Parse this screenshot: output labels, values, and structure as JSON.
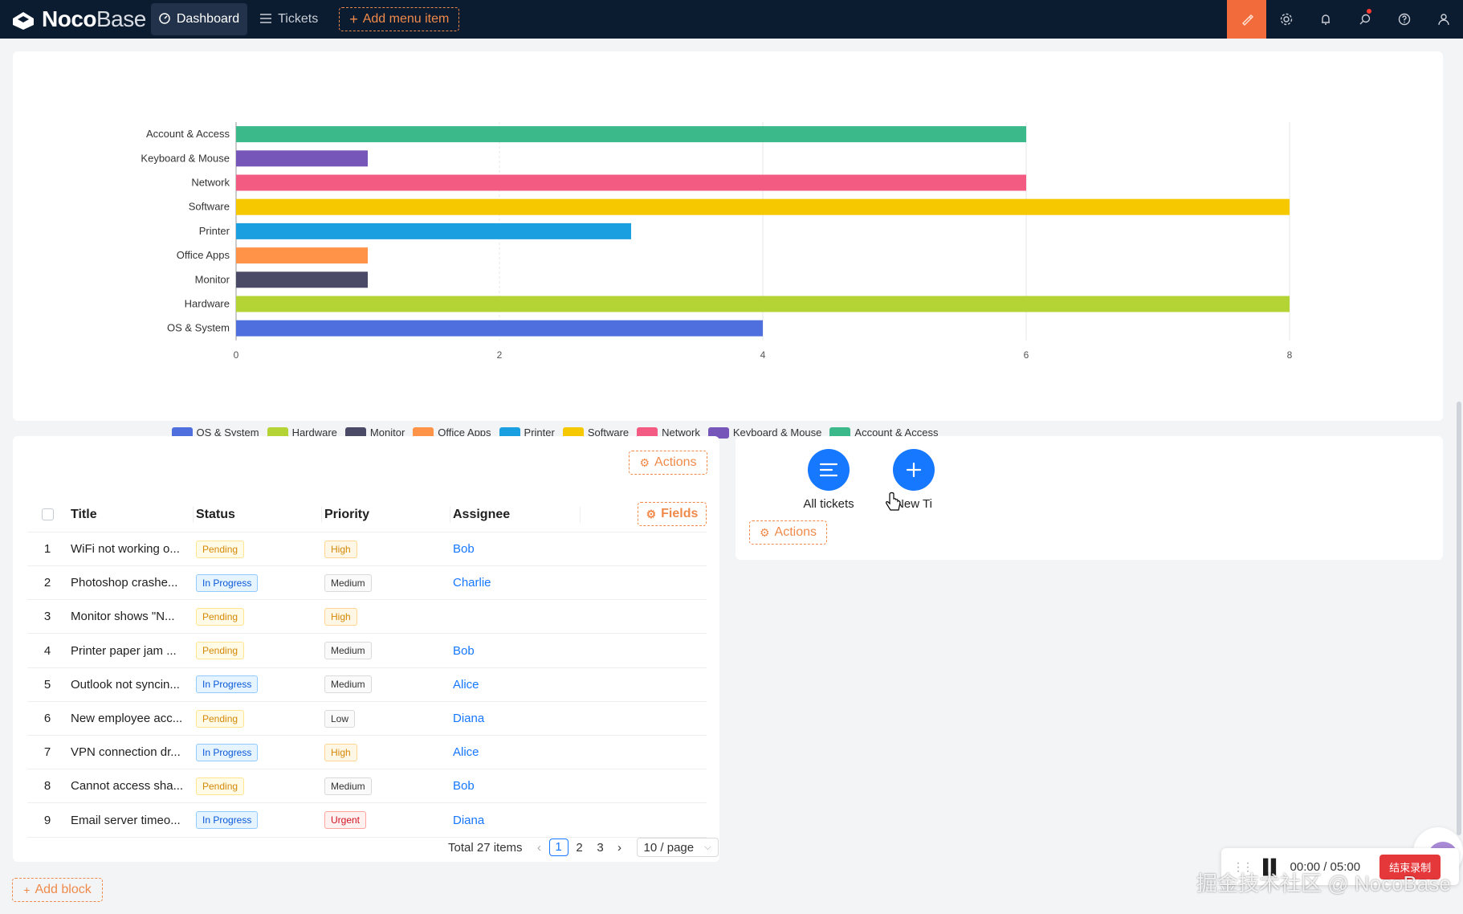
{
  "nav": {
    "logo_bold": "Noco",
    "logo_light": "Base",
    "items": [
      {
        "label": "Dashboard",
        "icon": "dashboard-icon",
        "active": true
      },
      {
        "label": "Tickets",
        "icon": "menu-icon",
        "active": false
      }
    ],
    "add_menu_label": "Add menu item",
    "right_icons": [
      "brush-icon",
      "gear-icon",
      "bell-icon",
      "search-icon",
      "help-icon",
      "user-icon"
    ]
  },
  "chart_data": {
    "type": "bar",
    "orientation": "horizontal",
    "categories": [
      "OS & System",
      "Hardware",
      "Monitor",
      "Office Apps",
      "Printer",
      "Software",
      "Network",
      "Keyboard & Mouse",
      "Account & Access"
    ],
    "values": [
      4,
      8,
      1,
      1,
      3,
      8,
      6,
      1,
      6
    ],
    "colors": [
      "#4f6fdf",
      "#b4d334",
      "#4a4a66",
      "#ff9448",
      "#1aa0e0",
      "#f5c800",
      "#f45b82",
      "#7656b8",
      "#3bb98a"
    ],
    "xlim": [
      0,
      8
    ],
    "xticks": [
      0,
      2,
      4,
      6,
      8
    ],
    "legend": [
      "OS & System",
      "Hardware",
      "Monitor",
      "Office Apps",
      "Printer",
      "Software",
      "Network",
      "Keyboard & Mouse",
      "Account & Access"
    ],
    "legend_position": "bottom",
    "grid": true
  },
  "table": {
    "actions_label": "Actions",
    "fields_label": "Fields",
    "columns": [
      "Title",
      "Status",
      "Priority",
      "Assignee"
    ],
    "rows": [
      {
        "num": "1",
        "title": "WiFi not working o...",
        "status": "Pending",
        "priority": "High",
        "assignee": "Bob"
      },
      {
        "num": "2",
        "title": "Photoshop crashe...",
        "status": "In Progress",
        "priority": "Medium",
        "assignee": "Charlie"
      },
      {
        "num": "3",
        "title": "Monitor shows \"N...",
        "status": "Pending",
        "priority": "High",
        "assignee": ""
      },
      {
        "num": "4",
        "title": "Printer paper jam ...",
        "status": "Pending",
        "priority": "Medium",
        "assignee": "Bob"
      },
      {
        "num": "5",
        "title": "Outlook not syncin...",
        "status": "In Progress",
        "priority": "Medium",
        "assignee": "Alice"
      },
      {
        "num": "6",
        "title": "New employee acc...",
        "status": "Pending",
        "priority": "Low",
        "assignee": "Diana"
      },
      {
        "num": "7",
        "title": "VPN connection dr...",
        "status": "In Progress",
        "priority": "High",
        "assignee": "Alice"
      },
      {
        "num": "8",
        "title": "Cannot access sha...",
        "status": "Pending",
        "priority": "Medium",
        "assignee": "Bob"
      },
      {
        "num": "9",
        "title": "Email server timeo...",
        "status": "In Progress",
        "priority": "Urgent",
        "assignee": "Diana"
      }
    ],
    "pagination": {
      "total": "Total 27 items",
      "pages": [
        "1",
        "2",
        "3"
      ],
      "current": "1",
      "page_size": "10 / page"
    }
  },
  "actions_panel": {
    "buttons": [
      {
        "label": "All tickets",
        "icon": "list-icon"
      },
      {
        "label": "New Ti",
        "icon": "plus-icon"
      }
    ],
    "actions_label": "Actions"
  },
  "add_block_label": "Add block",
  "recorder": {
    "time": "00:00 / 05:00",
    "stop_label": "结束录制"
  },
  "watermark": "掘金技术社区 @ NocoBase"
}
